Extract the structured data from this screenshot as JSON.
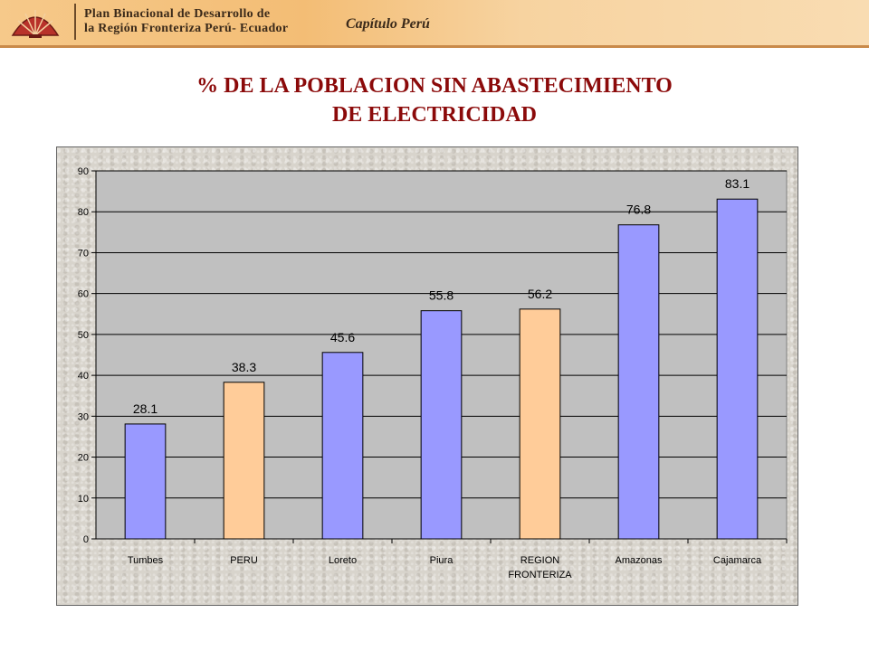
{
  "banner": {
    "line1": "Plan Binacional de Desarrollo de",
    "line2": "la Región Fronteriza Perú- Ecuador",
    "chapter": "Capítulo Perú"
  },
  "title": {
    "line1": "% DE LA POBLACION SIN ABASTECIMIENTO",
    "line2": "DE ELECTRICIDAD"
  },
  "colors": {
    "bar_default": "#9999ff",
    "bar_highlight": "#ffcc99",
    "plot_bg": "#c0c0c0",
    "title": "#8b0a0a"
  },
  "chart_data": {
    "type": "bar",
    "title": "% DE LA POBLACION SIN ABASTECIMIENTO DE ELECTRICIDAD",
    "categories": [
      [
        "Tumbes"
      ],
      [
        "PERU"
      ],
      [
        "Loreto"
      ],
      [
        "Piura"
      ],
      [
        "REGION",
        "FRONTERIZA"
      ],
      [
        "Amazonas"
      ],
      [
        "Cajamarca"
      ]
    ],
    "values": [
      28.1,
      38.3,
      45.6,
      55.8,
      56.2,
      76.8,
      83.1
    ],
    "value_labels": [
      "28.1",
      "38.3",
      "45.6",
      "55.8",
      "56.2",
      "76.8",
      "83.1"
    ],
    "highlighted": [
      false,
      true,
      false,
      false,
      true,
      false,
      false
    ],
    "ylim": [
      0,
      90
    ],
    "yticks": [
      "0",
      "10",
      "20",
      "30",
      "40",
      "50",
      "60",
      "70",
      "80",
      "90"
    ],
    "grid": true,
    "legend": "none"
  }
}
